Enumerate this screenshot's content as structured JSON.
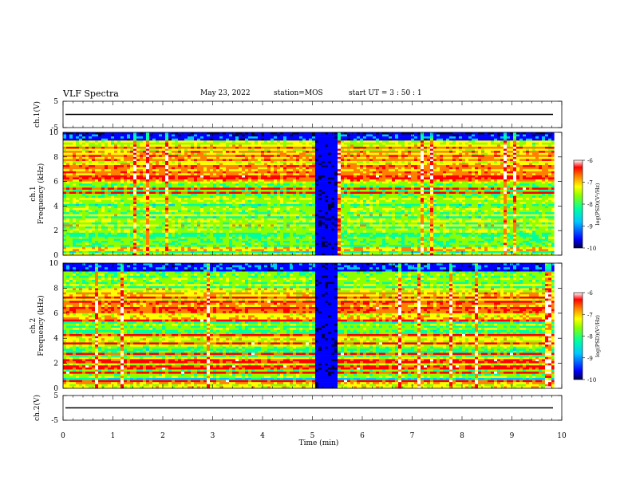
{
  "header": {
    "title": "VLF Spectra",
    "date": "May 23, 2022",
    "station_label": "station=MOS",
    "start_label": "start  UT =   3 : 50 : 1"
  },
  "chart_data": {
    "type": "heatmap",
    "xlabel": "Time  (min)",
    "xlim": [
      0,
      10
    ],
    "x_ticks": [
      "0",
      "1",
      "2",
      "3",
      "4",
      "5",
      "6",
      "7",
      "8",
      "9",
      "10"
    ],
    "panels": [
      {
        "id": "ch1-voltage",
        "ylabel": "ch.1(V)",
        "ylim": [
          -5,
          5
        ],
        "y_ticks": [
          "5",
          "-5"
        ],
        "trace_level": 0
      },
      {
        "id": "ch1-spectrogram",
        "ylabel": "ch.1\nFrequency  (kHz)",
        "ylim": [
          0,
          10
        ],
        "y_ticks": [
          "0",
          "2",
          "4",
          "6",
          "8",
          "10"
        ],
        "colorbar": {
          "label": "log(PSD)(V²/Hz)",
          "range": [
            -10,
            -6
          ],
          "ticks": [
            "-6",
            "-7",
            "-8",
            "-9",
            "-10"
          ]
        },
        "data_end_min": 9.85,
        "gap_start_min": 5.1,
        "gap_end_min": 5.45,
        "hot_band_khz": [
          6,
          9
        ]
      },
      {
        "id": "ch2-spectrogram",
        "ylabel": "ch.2\nFrequency  (kHz)",
        "ylim": [
          0,
          10
        ],
        "y_ticks": [
          "0",
          "2",
          "4",
          "6",
          "8",
          "10"
        ],
        "colorbar": {
          "label": "log(PSD)(V²/Hz)",
          "range": [
            -10,
            -6
          ],
          "ticks": [
            "-6",
            "-7",
            "-8",
            "-9",
            "-10"
          ]
        },
        "data_end_min": 9.85,
        "gap_start_min": 5.1,
        "gap_end_min": 5.45,
        "hot_band_khz": [
          5.5,
          8
        ]
      },
      {
        "id": "ch2-voltage",
        "ylabel": "ch.2(V)",
        "ylim": [
          -5,
          5
        ],
        "y_ticks": [
          "5",
          "-5"
        ],
        "trace_level": 0
      }
    ]
  },
  "colors": {
    "axis": "#000000",
    "background": "#ffffff",
    "colormap": [
      "#000044",
      "#0000ff",
      "#00c8ff",
      "#00ff9f",
      "#8cff00",
      "#ffff00",
      "#ff8000",
      "#ff0000",
      "#ffffff"
    ]
  }
}
